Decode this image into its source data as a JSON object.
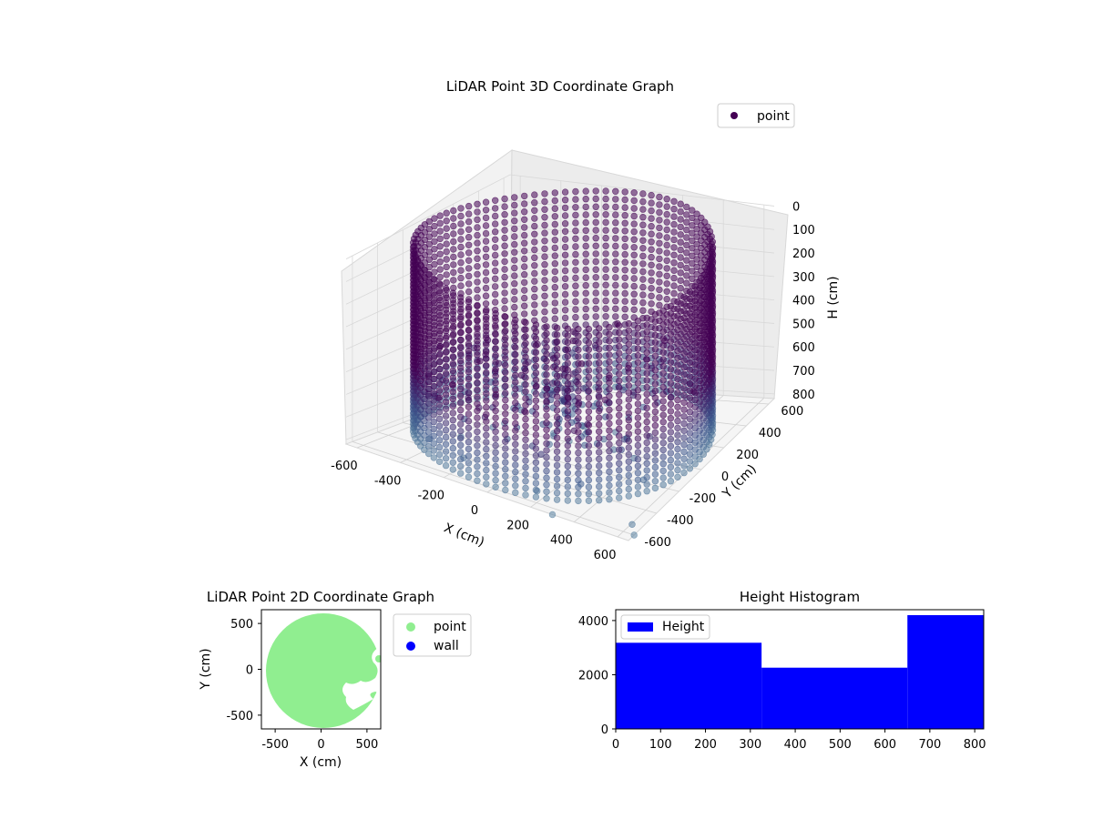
{
  "chart_data": [
    {
      "type": "scatter3d",
      "title": "LiDAR Point 3D Coordinate Graph",
      "xlabel": "X (cm)",
      "ylabel": "Y (cm)",
      "zlabel": "H (cm)",
      "xlim": [
        -650,
        650
      ],
      "ylim": [
        -650,
        650
      ],
      "zlim": [
        0,
        820
      ],
      "z_inverted": true,
      "xticks": [
        "-600",
        "-400",
        "-200",
        "0",
        "200",
        "400",
        "600"
      ],
      "yticks": [
        "-600",
        "-400",
        "-200",
        "0",
        "200",
        "400",
        "600"
      ],
      "zticks": [
        "0",
        "100",
        "200",
        "300",
        "400",
        "500",
        "600",
        "700",
        "800"
      ],
      "legend": {
        "entries": [
          "point"
        ],
        "placement": "upper-right"
      },
      "series": [
        {
          "name": "point",
          "colormap": "viridis",
          "color": "#440154",
          "description_of_shape": "cylindrical wall of radius ~620 cm from H 0 to ~800 cm with sparse scatter below",
          "wall_radius": 620,
          "wall_center": [
            0,
            0
          ],
          "wall_height": [
            0,
            800
          ],
          "outliers": [
            {
              "x": 300,
              "y": -650,
              "h": 820
            },
            {
              "x": 650,
              "y": -600,
              "h": 820
            },
            {
              "x": 620,
              "y": -560,
              "h": 800
            }
          ]
        }
      ],
      "grid": true
    },
    {
      "type": "scatter",
      "title": "LiDAR Point 2D Coordinate Graph",
      "xlabel": "X (cm)",
      "ylabel": "Y (cm)",
      "xlim": [
        -650,
        650
      ],
      "ylim": [
        -650,
        650
      ],
      "xticks": [
        "-500",
        "0",
        "500"
      ],
      "yticks": [
        "500",
        "0",
        "-500"
      ],
      "legend": {
        "entries": [
          "point",
          "wall"
        ],
        "placement": "outside-right"
      },
      "series": [
        {
          "name": "point",
          "color": "#90ee90",
          "shape": "filled disc of radius ~620 cm centered near (0,0)"
        },
        {
          "name": "wall",
          "color": "#0000ff"
        }
      ]
    },
    {
      "type": "bar",
      "title": "Height Histogram",
      "legend": {
        "entries": [
          "Height"
        ],
        "placement": "upper-left"
      },
      "xlim": [
        0,
        820
      ],
      "ylim": [
        0,
        4400
      ],
      "xticks": [
        "0",
        "100",
        "200",
        "300",
        "400",
        "500",
        "600",
        "700",
        "800"
      ],
      "yticks": [
        "0",
        "2000",
        "4000"
      ],
      "bins": [
        {
          "x0": 0,
          "x1": 325,
          "value": 3180
        },
        {
          "x0": 325,
          "x1": 650,
          "value": 2260
        },
        {
          "x0": 650,
          "x1": 820,
          "value": 4200
        }
      ],
      "series": [
        {
          "name": "Height",
          "color": "#0000ff"
        }
      ]
    }
  ]
}
